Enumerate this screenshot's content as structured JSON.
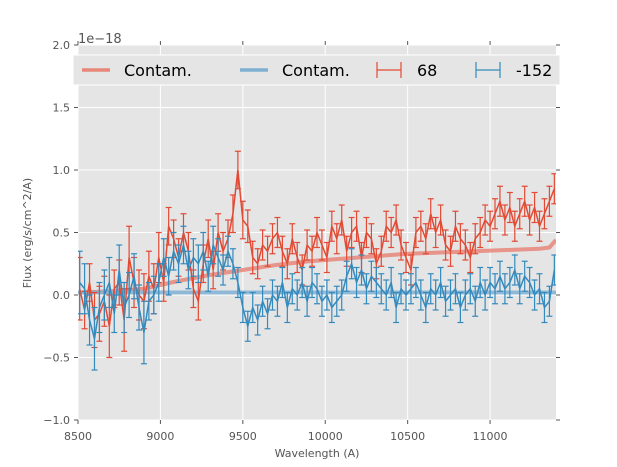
{
  "chart_data": {
    "type": "line",
    "title": "",
    "xlabel": "Wavelength (A)",
    "ylabel": "Flux (erg/s/cm^2/A)",
    "y_offset_label": "1e−18",
    "xlim": [
      8500,
      11400
    ],
    "ylim": [
      -1.0,
      2.0
    ],
    "x_ticks": [
      8500,
      9000,
      9500,
      10000,
      10500,
      11000
    ],
    "x_tick_labels": [
      "8500",
      "9000",
      "9500",
      "10000",
      "10500",
      "11000"
    ],
    "y_ticks": [
      -1.0,
      -0.5,
      0.0,
      0.5,
      1.0,
      1.5,
      2.0
    ],
    "y_tick_labels": [
      "−1.0",
      "−0.5",
      "0.0",
      "0.5",
      "1.0",
      "1.5",
      "2.0"
    ],
    "grid": true,
    "legend_position": "top",
    "legend": [
      {
        "label": "Contam.",
        "kind": "line",
        "color": "#e8867a"
      },
      {
        "label": "Contam.",
        "kind": "line",
        "color": "#7fb0d2"
      },
      {
        "label": "68",
        "kind": "errorbar",
        "color": "#e24a33"
      },
      {
        "label": "-152",
        "kind": "errorbar",
        "color": "#348abd"
      }
    ],
    "colors": {
      "background": "#e5e5e5",
      "grid": "#ffffff",
      "red": "#e24a33",
      "blue": "#348abd",
      "red_contam": "#e8867a",
      "blue_contam": "#7fb0d2"
    },
    "x": [
      8510,
      8540,
      8570,
      8600,
      8630,
      8660,
      8690,
      8720,
      8750,
      8780,
      8810,
      8840,
      8870,
      8900,
      8930,
      8960,
      8990,
      9020,
      9050,
      9080,
      9110,
      9140,
      9170,
      9200,
      9230,
      9260,
      9290,
      9320,
      9350,
      9380,
      9410,
      9440,
      9470,
      9500,
      9530,
      9560,
      9590,
      9620,
      9650,
      9680,
      9710,
      9740,
      9770,
      9800,
      9830,
      9860,
      9890,
      9920,
      9950,
      9980,
      10010,
      10040,
      10070,
      10100,
      10130,
      10160,
      10190,
      10220,
      10250,
      10280,
      10310,
      10340,
      10370,
      10400,
      10430,
      10460,
      10490,
      10520,
      10550,
      10580,
      10610,
      10640,
      10670,
      10700,
      10730,
      10760,
      10790,
      10820,
      10850,
      10880,
      10910,
      10940,
      10970,
      11000,
      11030,
      11060,
      11090,
      11120,
      11150,
      11180,
      11210,
      11240,
      11270,
      11300,
      11330,
      11360,
      11390
    ],
    "series": [
      {
        "name": "68",
        "type": "errorbar",
        "values": [
          0.05,
          -0.12,
          0.1,
          -0.2,
          -0.15,
          -0.05,
          -0.25,
          0.05,
          0.1,
          -0.2,
          0.3,
          0.1,
          0.0,
          -0.05,
          0.15,
          0.05,
          0.3,
          0.1,
          0.55,
          0.45,
          0.3,
          0.5,
          0.35,
          0.05,
          -0.05,
          0.25,
          0.45,
          0.2,
          0.5,
          0.35,
          0.45,
          0.65,
          1.0,
          0.6,
          0.55,
          0.3,
          0.25,
          0.4,
          0.35,
          0.45,
          0.5,
          0.35,
          0.25,
          0.45,
          0.3,
          0.2,
          0.4,
          0.35,
          0.5,
          0.4,
          0.3,
          0.55,
          0.45,
          0.6,
          0.35,
          0.5,
          0.55,
          0.3,
          0.5,
          0.45,
          0.25,
          0.35,
          0.55,
          0.5,
          0.6,
          0.4,
          0.3,
          0.2,
          0.5,
          0.55,
          0.45,
          0.65,
          0.5,
          0.6,
          0.4,
          0.35,
          0.55,
          0.45,
          0.4,
          0.3,
          0.45,
          0.5,
          0.6,
          0.55,
          0.65,
          0.75,
          0.6,
          0.7,
          0.55,
          0.65,
          0.75,
          0.6,
          0.7,
          0.55,
          0.65,
          0.75,
          0.85
        ],
        "errors": [
          0.25,
          0.15,
          0.15,
          0.22,
          0.22,
          0.2,
          0.25,
          0.15,
          0.18,
          0.25,
          0.25,
          0.2,
          0.2,
          0.22,
          0.2,
          0.2,
          0.2,
          0.15,
          0.15,
          0.15,
          0.15,
          0.15,
          0.15,
          0.15,
          0.15,
          0.15,
          0.15,
          0.15,
          0.15,
          0.15,
          0.15,
          0.15,
          0.15,
          0.15,
          0.13,
          0.13,
          0.12,
          0.12,
          0.12,
          0.12,
          0.12,
          0.12,
          0.12,
          0.12,
          0.12,
          0.12,
          0.12,
          0.12,
          0.12,
          0.12,
          0.12,
          0.12,
          0.12,
          0.12,
          0.12,
          0.12,
          0.12,
          0.12,
          0.12,
          0.12,
          0.12,
          0.12,
          0.12,
          0.12,
          0.12,
          0.12,
          0.12,
          0.12,
          0.12,
          0.12,
          0.12,
          0.12,
          0.12,
          0.12,
          0.12,
          0.12,
          0.12,
          0.12,
          0.12,
          0.12,
          0.12,
          0.12,
          0.12,
          0.12,
          0.12,
          0.12,
          0.12,
          0.12,
          0.12,
          0.12,
          0.12,
          0.12,
          0.12,
          0.12,
          0.12,
          0.12,
          0.12
        ]
      },
      {
        "name": "-152",
        "type": "errorbar",
        "values": [
          0.1,
          0.05,
          -0.2,
          -0.35,
          -0.1,
          0.0,
          0.1,
          -0.15,
          0.2,
          -0.1,
          0.0,
          0.15,
          -0.1,
          -0.3,
          -0.05,
          0.0,
          0.1,
          0.3,
          0.15,
          0.35,
          0.25,
          0.4,
          0.2,
          0.3,
          0.25,
          0.35,
          0.15,
          0.4,
          0.3,
          0.2,
          0.35,
          0.25,
          0.1,
          -0.1,
          -0.25,
          -0.1,
          -0.2,
          -0.05,
          -0.15,
          0.0,
          -0.05,
          0.1,
          -0.1,
          0.05,
          0.0,
          0.1,
          -0.05,
          0.1,
          0.05,
          -0.05,
          0.0,
          -0.1,
          -0.05,
          0.0,
          0.15,
          0.25,
          0.1,
          0.2,
          0.05,
          0.15,
          0.1,
          0.05,
          0.0,
          0.1,
          -0.1,
          0.05,
          0.0,
          0.05,
          0.1,
          0.0,
          -0.1,
          0.05,
          0.0,
          0.1,
          -0.05,
          0.0,
          0.05,
          -0.1,
          0.0,
          0.05,
          -0.05,
          0.1,
          0.0,
          0.1,
          0.05,
          0.15,
          0.05,
          0.1,
          0.2,
          0.05,
          0.15,
          0.1,
          0.0,
          0.05,
          -0.1,
          -0.05,
          0.2
        ],
        "errors": [
          0.25,
          0.2,
          0.2,
          0.25,
          0.2,
          0.2,
          0.2,
          0.15,
          0.2,
          0.2,
          0.18,
          0.18,
          0.18,
          0.25,
          0.15,
          0.15,
          0.15,
          0.15,
          0.15,
          0.15,
          0.15,
          0.15,
          0.15,
          0.15,
          0.15,
          0.15,
          0.12,
          0.15,
          0.15,
          0.12,
          0.12,
          0.12,
          0.12,
          0.12,
          0.12,
          0.12,
          0.12,
          0.12,
          0.12,
          0.12,
          0.12,
          0.12,
          0.12,
          0.12,
          0.12,
          0.12,
          0.12,
          0.12,
          0.12,
          0.12,
          0.12,
          0.12,
          0.12,
          0.12,
          0.12,
          0.12,
          0.12,
          0.12,
          0.12,
          0.12,
          0.12,
          0.12,
          0.12,
          0.12,
          0.12,
          0.12,
          0.12,
          0.12,
          0.12,
          0.12,
          0.12,
          0.12,
          0.12,
          0.12,
          0.12,
          0.12,
          0.12,
          0.12,
          0.12,
          0.12,
          0.12,
          0.12,
          0.12,
          0.12,
          0.12,
          0.12,
          0.12,
          0.12,
          0.12,
          0.12,
          0.12,
          0.12,
          0.12,
          0.12,
          0.12,
          0.12,
          0.12
        ]
      },
      {
        "name": "Contam. (68)",
        "type": "line",
        "x": [
          8500,
          8700,
          8900,
          9100,
          9300,
          9500,
          9700,
          9900,
          10100,
          10300,
          10500,
          10700,
          10900,
          11100,
          11300,
          11360,
          11400
        ],
        "values": [
          0.02,
          0.03,
          0.05,
          0.11,
          0.16,
          0.2,
          0.24,
          0.27,
          0.29,
          0.31,
          0.33,
          0.34,
          0.35,
          0.36,
          0.37,
          0.38,
          0.44
        ]
      },
      {
        "name": "Contam. (-152)",
        "type": "line",
        "x": [
          8500,
          9000,
          9500,
          10000,
          10500,
          11000,
          11400
        ],
        "values": [
          0.02,
          0.02,
          0.02,
          0.02,
          0.02,
          0.02,
          0.02
        ]
      }
    ]
  }
}
